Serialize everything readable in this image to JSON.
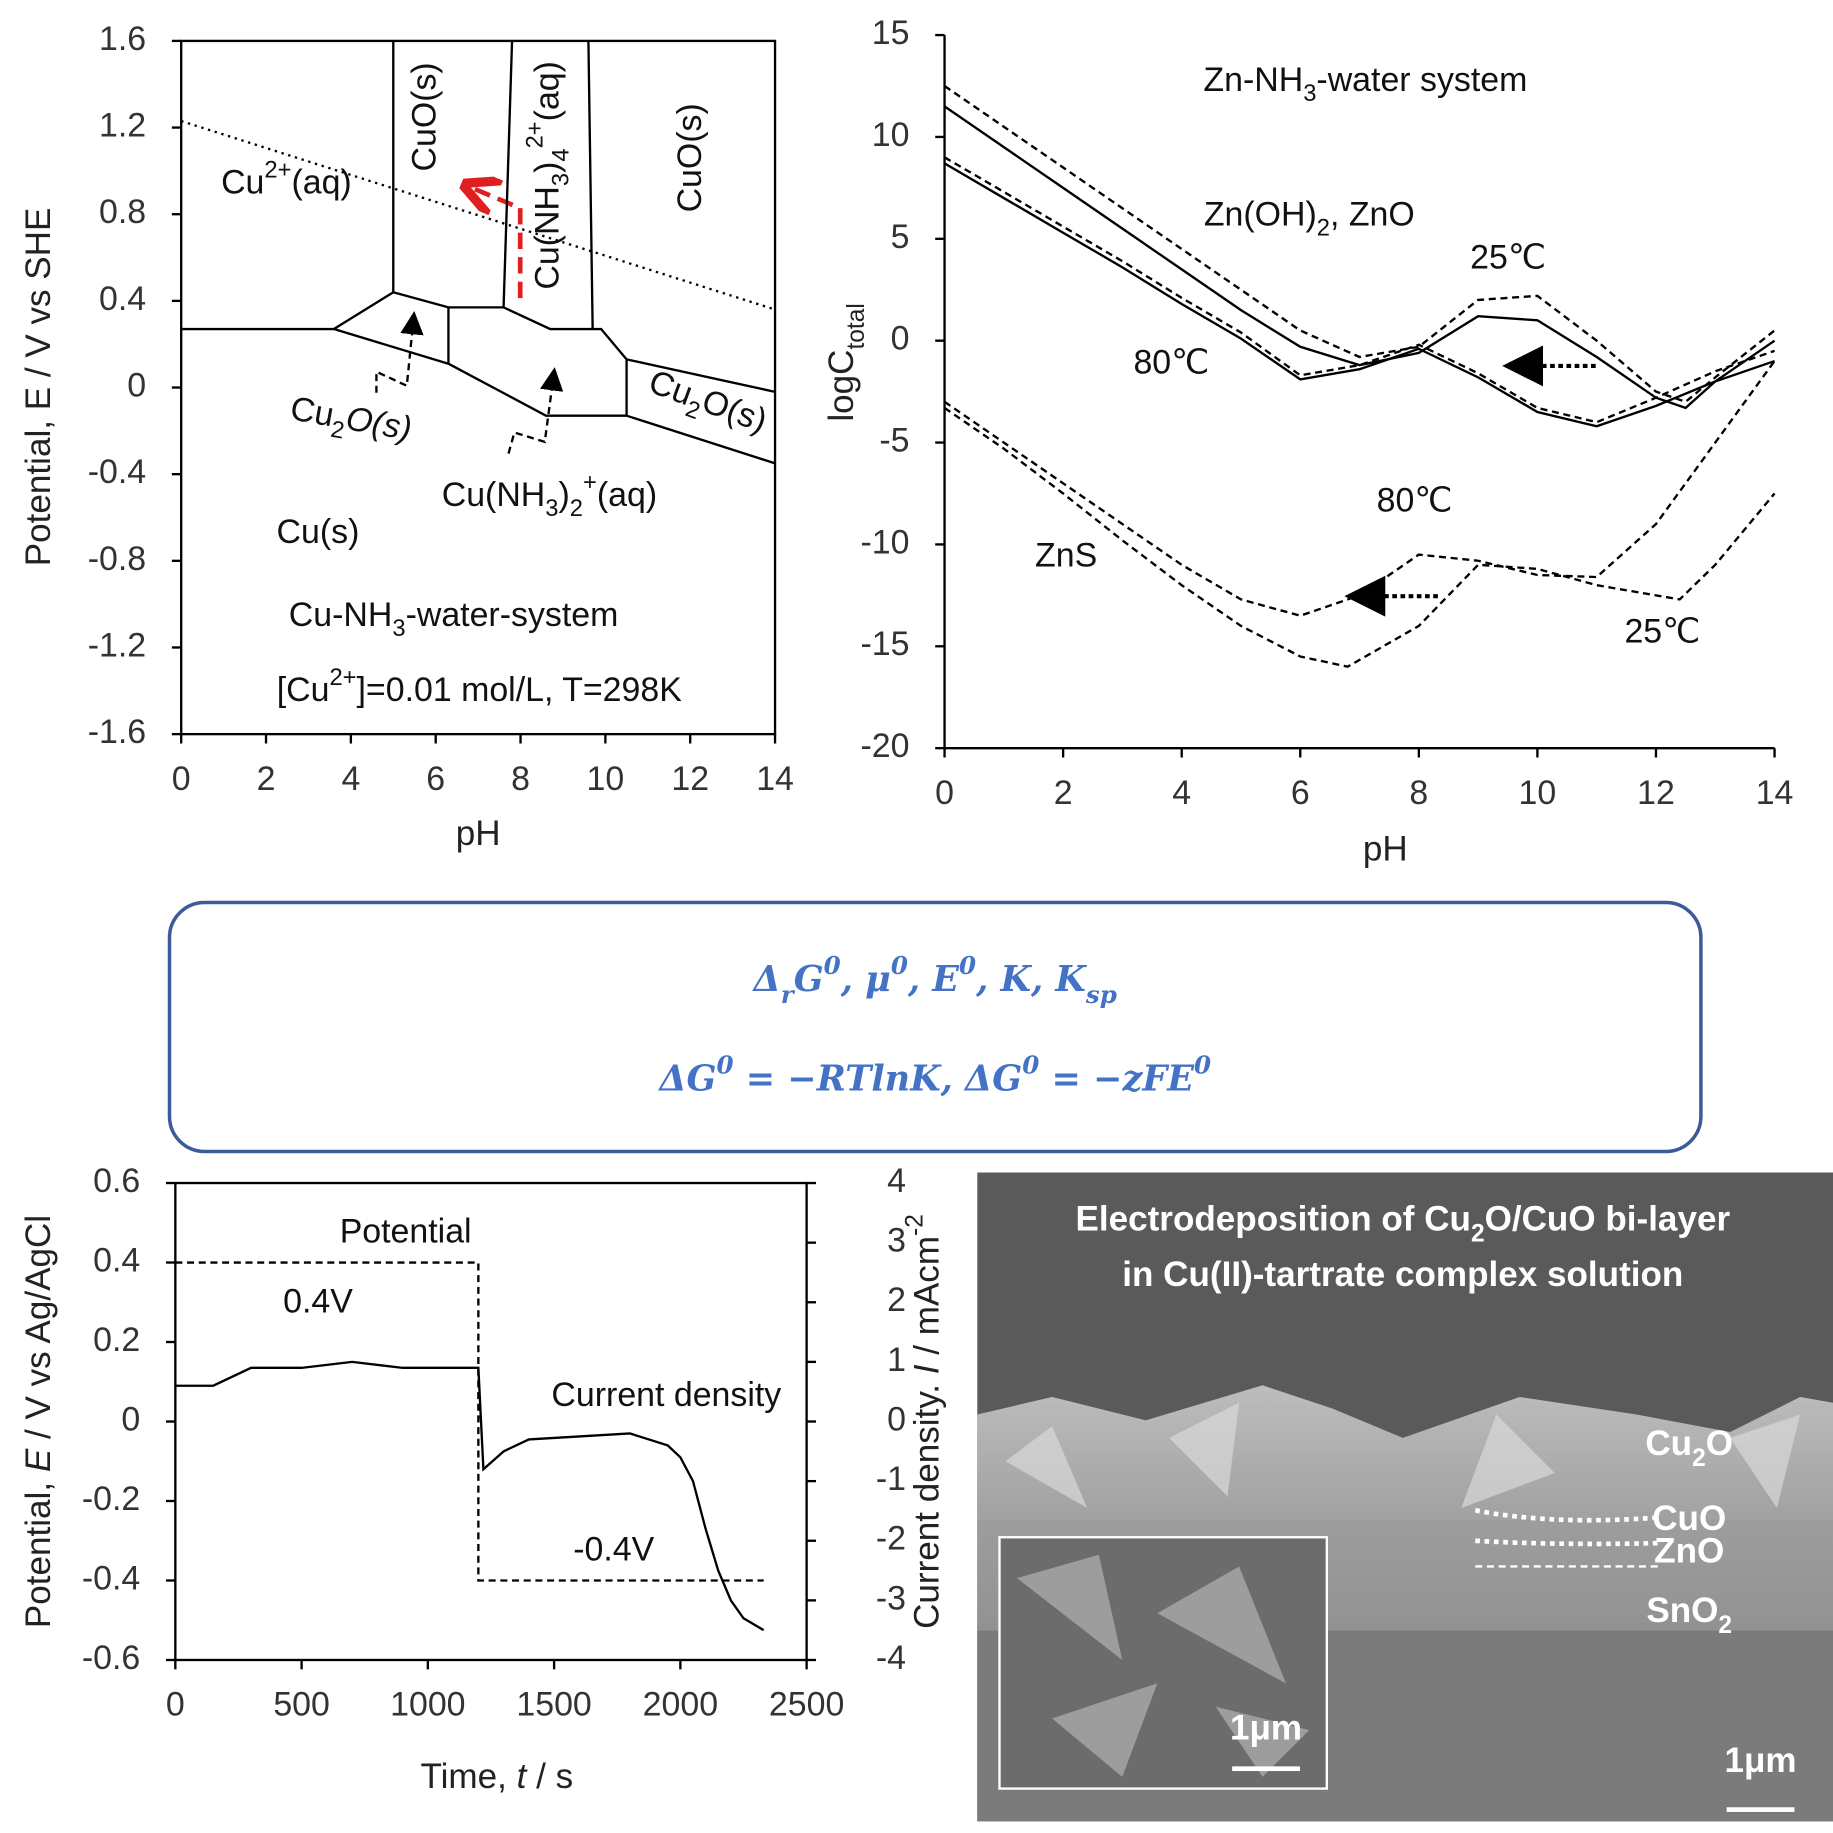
{
  "chart_data": [
    {
      "type": "line",
      "xlabel": "pH",
      "ylabel": "Potential, E / V vs SHE",
      "xlim": [
        0,
        14
      ],
      "ylim": [
        -1.6,
        1.6
      ],
      "xticks": [
        0,
        2,
        4,
        6,
        8,
        10,
        12,
        14
      ],
      "yticks": [
        -1.6,
        -1.2,
        -0.8,
        -0.4,
        0,
        0.4,
        0.8,
        1.2,
        1.6
      ],
      "annotations": [
        [
          {
            "text": "CuO(s)"
          }
        ],
        [
          {
            "text": "Cu(NH"
          },
          {
            "text": "3",
            "pos": "sub"
          },
          {
            "text": ")"
          },
          {
            "text": "4",
            "pos": "sub"
          },
          {
            "text": "2+",
            "pos": "sup"
          },
          {
            "text": "(aq)"
          }
        ],
        [
          {
            "text": "CuO(s)"
          }
        ],
        [
          {
            "text": "Cu"
          },
          {
            "text": "2+",
            "pos": "sup"
          },
          {
            "text": "(aq)"
          }
        ],
        [
          {
            "text": "Cu"
          },
          {
            "text": "2",
            "pos": "sub"
          },
          {
            "text": "O(s)",
            "pos": "it"
          }
        ],
        [
          {
            "text": "Cu(NH"
          },
          {
            "text": "3",
            "pos": "sub"
          },
          {
            "text": ")"
          },
          {
            "text": "2",
            "pos": "sub"
          },
          {
            "text": "+",
            "pos": "sup"
          },
          {
            "text": "(aq)"
          }
        ],
        [
          {
            "text": "Cu"
          },
          {
            "text": "2",
            "pos": "sub"
          },
          {
            "text": "O(s)"
          }
        ],
        [
          {
            "text": "Cu(s)"
          }
        ],
        [
          {
            "text": "Cu-NH"
          },
          {
            "text": "3",
            "pos": "sub"
          },
          {
            "text": "-water-system"
          }
        ],
        [
          {
            "text": "[Cu"
          },
          {
            "text": "2+",
            "pos": "sup"
          },
          {
            "text": "]=0.01 mol/L, T=298K"
          }
        ]
      ],
      "series": [
        {
          "dash": "solid",
          "color": "#000",
          "x": [
            0,
            3.6
          ],
          "values": [
            0.27,
            0.27
          ]
        },
        {
          "dash": "solid",
          "color": "#000",
          "x": [
            3.6,
            5.0,
            6.3,
            7.6,
            8.7,
            9.9,
            10.5
          ],
          "values": [
            0.27,
            0.44,
            0.37,
            0.37,
            0.27,
            0.27,
            0.13
          ]
        },
        {
          "dash": "solid",
          "color": "#000",
          "x": [
            3.6,
            6.3
          ],
          "values": [
            0.27,
            0.11
          ]
        },
        {
          "dash": "solid",
          "color": "#000",
          "x": [
            6.3,
            6.3
          ],
          "values": [
            0.37,
            0.11
          ]
        },
        {
          "dash": "solid",
          "color": "#000",
          "x": [
            5.0,
            5.0
          ],
          "values": [
            0.44,
            1.6
          ]
        },
        {
          "dash": "solid",
          "color": "#000",
          "x": [
            7.6,
            7.8
          ],
          "values": [
            0.37,
            1.6
          ]
        },
        {
          "dash": "solid",
          "color": "#000",
          "x": [
            9.7,
            9.6
          ],
          "values": [
            0.27,
            1.6
          ]
        },
        {
          "dash": "solid",
          "color": "#000",
          "x": [
            6.3,
            8.6,
            10.5
          ],
          "values": [
            0.11,
            -0.13,
            -0.13
          ]
        },
        {
          "dash": "solid",
          "color": "#000",
          "x": [
            10.5,
            10.5
          ],
          "values": [
            -0.13,
            0.13
          ]
        },
        {
          "dash": "solid",
          "color": "#000",
          "x": [
            10.5,
            14
          ],
          "values": [
            0.13,
            -0.02
          ]
        },
        {
          "dash": "solid",
          "color": "#000",
          "x": [
            10.5,
            14
          ],
          "values": [
            -0.13,
            -0.35
          ]
        },
        {
          "dash": "dotted",
          "color": "#000",
          "x": [
            0,
            14
          ],
          "values": [
            1.23,
            0.36
          ]
        }
      ]
    },
    {
      "type": "line",
      "xlabel": "pH",
      "ylabel": [
        {
          "text": "logC"
        },
        {
          "text": "total",
          "pos": "sub"
        }
      ],
      "xlim": [
        0,
        14
      ],
      "ylim": [
        -20,
        15
      ],
      "xticks": [
        0,
        2,
        4,
        6,
        8,
        10,
        12,
        14
      ],
      "yticks": [
        -20,
        -15,
        -10,
        -5,
        0,
        5,
        10,
        15
      ],
      "annotations": [
        [
          {
            "text": "Zn-NH"
          },
          {
            "text": "3",
            "pos": "sub"
          },
          {
            "text": "-water system"
          }
        ],
        [
          {
            "text": "Zn(OH)"
          },
          {
            "text": "2",
            "pos": "sub"
          },
          {
            "text": ", ZnO"
          }
        ],
        [
          {
            "text": "25℃"
          }
        ],
        [
          {
            "text": "80℃"
          }
        ],
        [
          {
            "text": "80℃"
          }
        ],
        [
          {
            "text": "ZnS"
          }
        ],
        [
          {
            "text": "25℃"
          }
        ]
      ],
      "series": [
        {
          "dash": "solid",
          "color": "#000",
          "x": [
            0,
            1,
            2,
            3,
            4,
            5,
            6,
            7,
            8,
            9,
            10,
            11,
            12,
            12.5,
            13,
            14
          ],
          "values": [
            11.5,
            9.5,
            7.5,
            5.5,
            3.5,
            1.5,
            -0.3,
            -1.2,
            -0.6,
            1.2,
            1.0,
            -0.8,
            -2.8,
            -3.3,
            -2.0,
            0.0
          ]
        },
        {
          "dash": "dashed",
          "color": "#000",
          "x": [
            0,
            1,
            2,
            3,
            4,
            5,
            6,
            7,
            8,
            9,
            10,
            11,
            12,
            12.5,
            13,
            14
          ],
          "values": [
            12.5,
            10.5,
            8.5,
            6.5,
            4.5,
            2.5,
            0.5,
            -0.8,
            -0.3,
            2.0,
            2.2,
            0.0,
            -2.5,
            -3.0,
            -1.8,
            0.5
          ]
        },
        {
          "dash": "solid",
          "color": "#000",
          "x": [
            0,
            1,
            2,
            3,
            4,
            5,
            6,
            7,
            8,
            9,
            10,
            11,
            12,
            13,
            14
          ],
          "values": [
            8.7,
            7.0,
            5.3,
            3.6,
            1.8,
            0.1,
            -1.9,
            -1.4,
            -0.4,
            -1.8,
            -3.5,
            -4.2,
            -3.2,
            -2.0,
            -1.0
          ]
        },
        {
          "dash": "dashed",
          "color": "#000",
          "x": [
            0,
            1,
            2,
            3,
            4,
            5,
            6,
            7,
            8,
            9,
            10,
            11,
            12,
            13,
            14
          ],
          "values": [
            9.0,
            7.3,
            5.6,
            3.9,
            2.1,
            0.4,
            -1.7,
            -1.2,
            -0.2,
            -1.6,
            -3.3,
            -4.0,
            -2.8,
            -1.5,
            -0.5
          ]
        },
        {
          "dash": "dashed",
          "color": "#000",
          "x": [
            0,
            1,
            2,
            3,
            4,
            5,
            6,
            7,
            8,
            9,
            10,
            11,
            12,
            13,
            14
          ],
          "values": [
            -3.0,
            -5.0,
            -7.0,
            -9.0,
            -11.0,
            -12.7,
            -13.5,
            -12.5,
            -10.5,
            -10.8,
            -11.5,
            -11.6,
            -9.0,
            -5.0,
            -1.0
          ]
        },
        {
          "dash": "dashed",
          "color": "#000",
          "x": [
            0,
            1,
            2,
            3,
            4,
            5,
            6,
            6.8,
            8,
            9,
            10,
            11,
            12,
            12.4,
            13,
            14
          ],
          "values": [
            -3.3,
            -5.3,
            -7.5,
            -9.8,
            -12.0,
            -14.0,
            -15.5,
            -16.0,
            -14.0,
            -11.0,
            -11.2,
            -12.0,
            -12.5,
            -12.7,
            -11.0,
            -7.5
          ]
        }
      ]
    },
    {
      "type": "line",
      "xlabel": [
        {
          "text": "Time, "
        },
        {
          "text": "t",
          "pos": "it"
        },
        {
          "text": " / s"
        }
      ],
      "ylabel": [
        {
          "text": "Potential, "
        },
        {
          "text": "E",
          "pos": "it"
        },
        {
          "text": " / V vs Ag/AgCl"
        }
      ],
      "y2label": [
        {
          "text": "Current density. "
        },
        {
          "text": "I",
          "pos": "it"
        },
        {
          "text": " / mAcm"
        },
        {
          "text": "-2",
          "pos": "sup"
        }
      ],
      "xlim": [
        0,
        2500
      ],
      "ylim": [
        -0.6,
        0.6
      ],
      "y2lim": [
        -4,
        4
      ],
      "xticks": [
        0,
        500,
        1000,
        1500,
        2000,
        2500
      ],
      "yticks": [
        -0.6,
        -0.4,
        -0.2,
        0,
        0.2,
        0.4,
        0.6
      ],
      "y2ticks": [
        -4,
        -3,
        -2,
        -1,
        0,
        1,
        2,
        3,
        4
      ],
      "annotations": [
        [
          {
            "text": "Potential"
          }
        ],
        [
          {
            "text": "0.4V"
          }
        ],
        [
          {
            "text": "Current density"
          }
        ],
        [
          {
            "text": "-0.4V"
          }
        ]
      ],
      "series": [
        {
          "dash": "dashed",
          "color": "#000",
          "x": [
            0,
            1200,
            1200,
            2330
          ],
          "values": [
            0.4,
            0.4,
            -0.4,
            -0.4
          ]
        },
        {
          "dash": "solid",
          "color": "#000",
          "axis": "y2",
          "x": [
            0,
            150,
            300,
            500,
            700,
            900,
            1200,
            1220,
            1300,
            1400,
            1600,
            1800,
            1950,
            2000,
            2050,
            2100,
            2150,
            2200,
            2250,
            2330
          ],
          "values": [
            0.6,
            0.6,
            0.9,
            0.9,
            1.0,
            0.9,
            0.9,
            -0.8,
            -0.5,
            -0.3,
            -0.25,
            -0.2,
            -0.4,
            -0.6,
            -1.0,
            -1.8,
            -2.5,
            -3.0,
            -3.3,
            -3.5
          ]
        }
      ]
    }
  ],
  "formula": {
    "lines": [
      [
        {
          "text": "Δ"
        },
        {
          "text": "r",
          "pos": "sub"
        },
        {
          "text": "G"
        },
        {
          "text": "0",
          "pos": "sup"
        },
        {
          "text": ", μ"
        },
        {
          "text": "0",
          "pos": "sup"
        },
        {
          "text": ", E"
        },
        {
          "text": "0",
          "pos": "sup"
        },
        {
          "text": ", K, K"
        },
        {
          "text": "sp",
          "pos": "sub"
        }
      ],
      [
        {
          "text": "ΔG"
        },
        {
          "text": "0",
          "pos": "sup"
        },
        {
          "text": " = −RTlnK, ΔG"
        },
        {
          "text": "0",
          "pos": "sup"
        },
        {
          "text": " = −zFE"
        },
        {
          "text": "0",
          "pos": "sup"
        }
      ]
    ]
  },
  "sem_image": {
    "title": [
      "Electrodeposition of Cu",
      [
        {
          "text": "Electrodeposition of Cu"
        },
        {
          "text": "2",
          "pos": "sub"
        },
        {
          "text": "O/CuO bi-layer"
        }
      ],
      "in Cu(II)-tartrate complex solution"
    ],
    "layers": [
      [
        {
          "text": "Cu"
        },
        {
          "text": "2",
          "pos": "sub"
        },
        {
          "text": "O"
        }
      ],
      [
        {
          "text": "CuO"
        }
      ],
      [
        {
          "text": "ZnO"
        }
      ],
      [
        {
          "text": "SnO"
        },
        {
          "text": "2",
          "pos": "sub"
        }
      ]
    ],
    "scale_bars": [
      "1μm",
      "1μm"
    ]
  }
}
